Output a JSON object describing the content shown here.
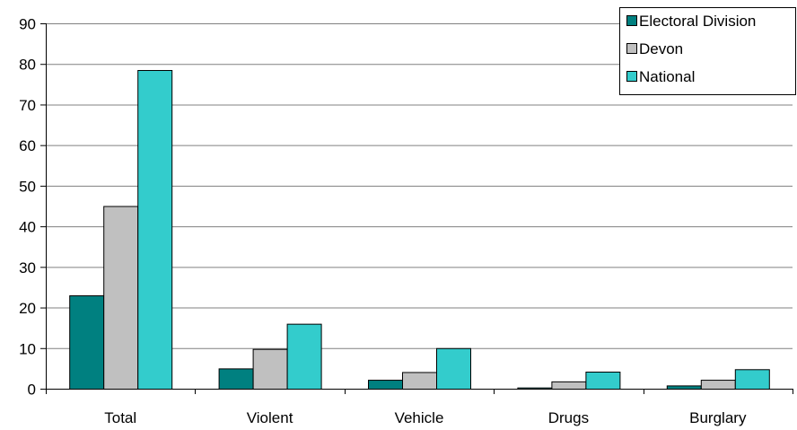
{
  "chart_data": {
    "type": "bar",
    "title": "",
    "xlabel": "",
    "ylabel": "",
    "categories": [
      "Total",
      "Violent",
      "Vehicle",
      "Drugs",
      "Burglary"
    ],
    "series": [
      {
        "name": "Electoral Division",
        "color": "#008080",
        "values": [
          23,
          5,
          2.2,
          0.3,
          0.8
        ]
      },
      {
        "name": "Devon",
        "color": "#c0c0c0",
        "values": [
          45,
          9.8,
          4.1,
          1.8,
          2.2
        ]
      },
      {
        "name": "National",
        "color": "#33cccc",
        "values": [
          78.5,
          16,
          10,
          4.2,
          4.8
        ]
      }
    ],
    "ylim": [
      0,
      90
    ],
    "yticks": [
      "0",
      "10",
      "20",
      "30",
      "40",
      "50",
      "60",
      "70",
      "80",
      "90"
    ],
    "grid": true,
    "legend_position": "top-right"
  }
}
